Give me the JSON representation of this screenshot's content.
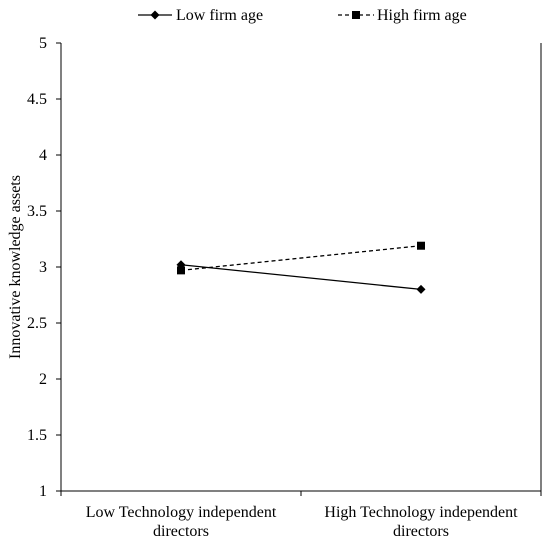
{
  "chart_data": {
    "type": "line",
    "title": "",
    "ylabel": "Innovative knowledge assets",
    "xlabel": "",
    "categories": [
      [
        "Low Technology independent",
        "directors"
      ],
      [
        "High Technology independent",
        "directors"
      ]
    ],
    "ylim": [
      1,
      5
    ],
    "yticks": [
      "1",
      "1.5",
      "2",
      "2.5",
      "3",
      "3.5",
      "4",
      "4.5",
      "5"
    ],
    "legend_position": "top",
    "grid": false,
    "series": [
      {
        "name": "Low firm age",
        "values": [
          3.02,
          2.8
        ],
        "marker": "diamond",
        "dash": "solid",
        "color": "#000000"
      },
      {
        "name": "High firm age",
        "values": [
          2.97,
          3.19
        ],
        "marker": "square",
        "dash": "dashed",
        "color": "#000000"
      }
    ]
  }
}
